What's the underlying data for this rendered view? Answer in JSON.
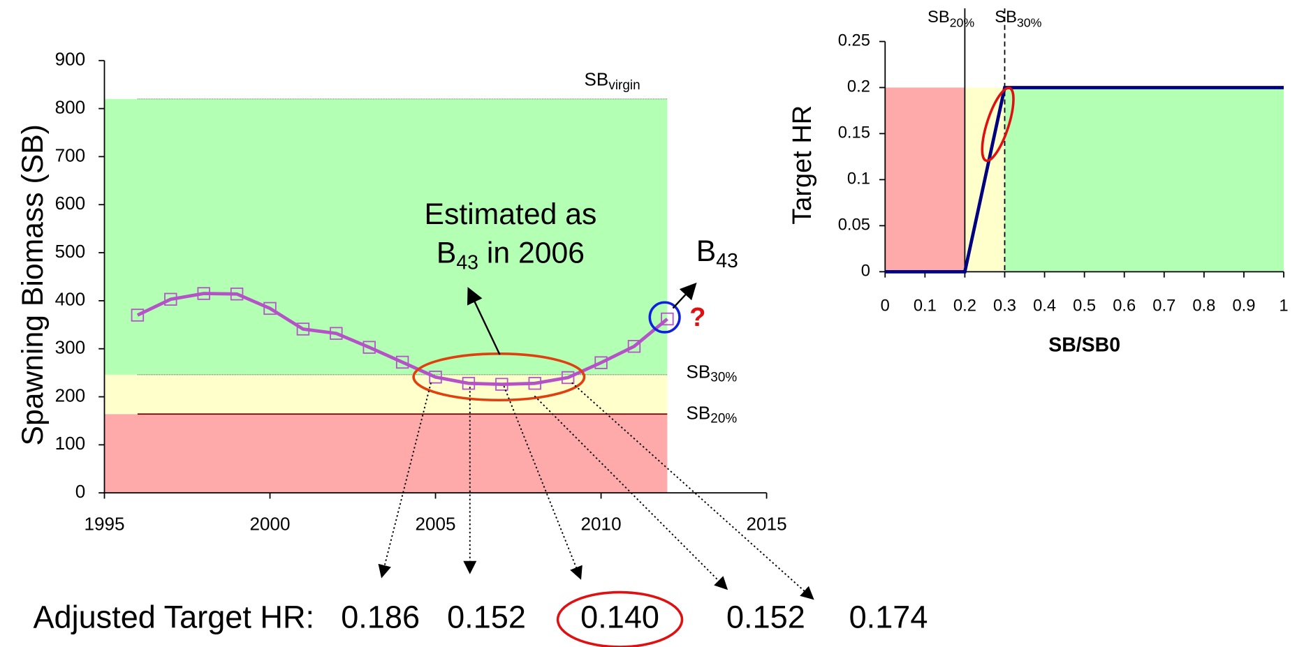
{
  "chart_data": [
    {
      "type": "line",
      "y_label": "Spawning Biomass (SB)",
      "x": [
        1996,
        1997,
        1998,
        1999,
        2000,
        2001,
        2002,
        2003,
        2004,
        2005,
        2006,
        2007,
        2008,
        2009,
        2010,
        2011,
        2012
      ],
      "series": [
        {
          "color": "#b552c8",
          "values": [
            370,
            403,
            415,
            414,
            384,
            341,
            332,
            303,
            272,
            241,
            228,
            226,
            228,
            240,
            271,
            305,
            362
          ]
        }
      ],
      "xlim": [
        1995,
        2015
      ],
      "xticks": [
        1995,
        2000,
        2005,
        2010,
        2015
      ],
      "ylim": [
        0,
        900
      ],
      "yticks": [
        0,
        100,
        200,
        300,
        400,
        500,
        600,
        700,
        800,
        900
      ],
      "zones": [
        {
          "from": 0,
          "to": 164,
          "color": "#ffaaaa"
        },
        {
          "from": 164,
          "to": 246,
          "color": "#ffffcc"
        },
        {
          "from": 246,
          "to": 820,
          "color": "#b3ffb3"
        }
      ],
      "zone_x": [
        1995,
        2012
      ],
      "ref_lines": [
        {
          "value": 820,
          "label": {
            "text": "SB",
            "sub": "virgin"
          }
        },
        {
          "value": 246,
          "label": {
            "text": "SB",
            "sub": "30%"
          }
        },
        {
          "value": 164,
          "label": {
            "text": "SB",
            "sub": "20%"
          }
        }
      ],
      "annotations": {
        "estimated_line1": "Estimated as",
        "estimated_b": "B",
        "estimated_sub": "43",
        "estimated_rest": " in 2006",
        "b43": "B",
        "b43_sub": "43",
        "question": "?"
      }
    },
    {
      "type": "line",
      "x_label": "SB/SB0",
      "y_label": "Target HR",
      "x": [
        0,
        0.2,
        0.3,
        1
      ],
      "series": [
        {
          "color": "#000080",
          "values": [
            0,
            0,
            0.2,
            0.2
          ]
        }
      ],
      "xlim": [
        0,
        1
      ],
      "xticks": [
        0,
        0.1,
        0.2,
        0.3,
        0.4,
        0.5,
        0.6,
        0.7,
        0.8,
        0.9,
        1
      ],
      "ylim": [
        0,
        0.25
      ],
      "yticks": [
        0,
        0.05,
        0.1,
        0.15,
        0.2,
        0.25
      ],
      "zones": [
        {
          "from": 0,
          "to": 0.2,
          "x": [
            0,
            0.2
          ],
          "color": "#ffaaaa"
        },
        {
          "from": 0,
          "to": 0.2,
          "x": [
            0.2,
            0.3
          ],
          "color": "#ffffcc"
        },
        {
          "from": 0,
          "to": 0.2,
          "x": [
            0.3,
            1
          ],
          "color": "#b3ffb3"
        }
      ],
      "vlines": [
        {
          "value": 0.2,
          "dashed": false,
          "label": {
            "text": "SB",
            "sub": "20%"
          }
        },
        {
          "value": 0.3,
          "dashed": true,
          "label": {
            "text": "SB",
            "sub": "30%"
          }
        }
      ]
    }
  ],
  "adjusted": {
    "label": "Adjusted Target HR:",
    "values": [
      "0.186",
      "0.152",
      "0.140",
      "0.152",
      "0.174"
    ]
  }
}
